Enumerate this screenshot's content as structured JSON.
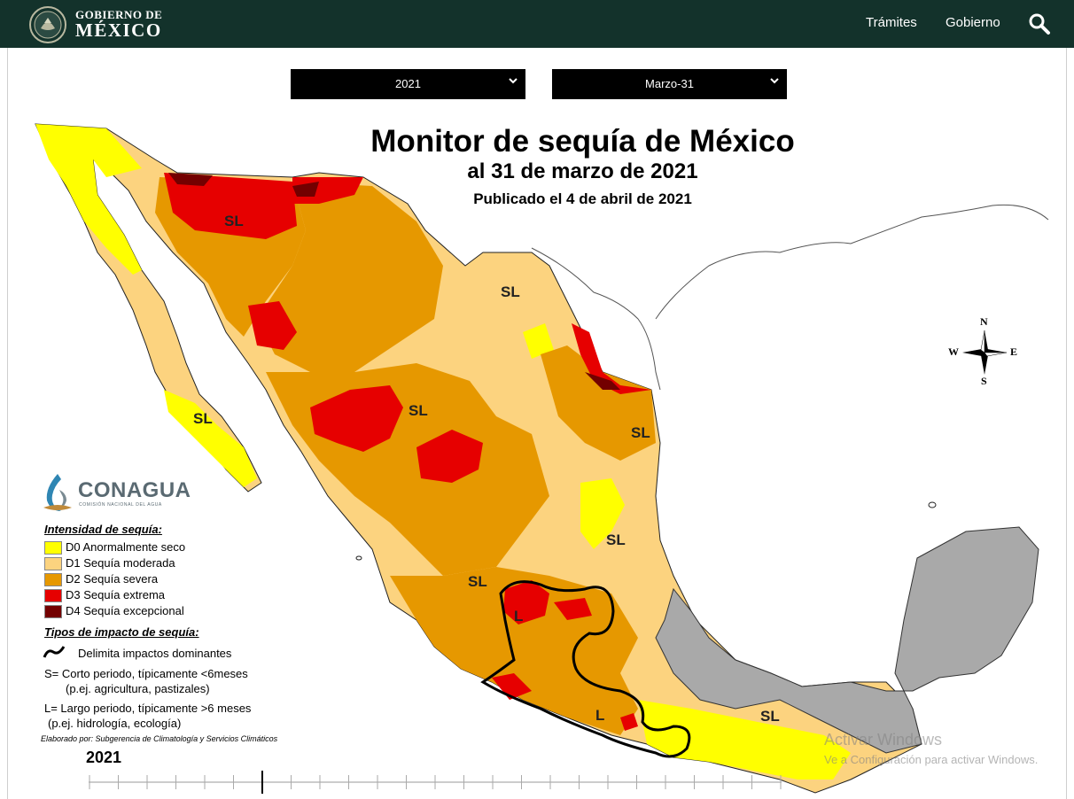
{
  "header": {
    "brand_line1": "GOBIERNO DE",
    "brand_line2": "MÉXICO",
    "nav": [
      "Trámites",
      "Gobierno"
    ],
    "search_icon": "search-icon"
  },
  "filters": {
    "year": "2021",
    "date": "Marzo-31"
  },
  "map": {
    "title": "Monitor de sequía de México",
    "subtitle": "al 31 de marzo de 2021",
    "published": "Publicado el 4 de abril de 2021",
    "region_labels": [
      "SL",
      "SL",
      "SL",
      "SL",
      "SL",
      "SL",
      "SL",
      "SL",
      "L",
      "L"
    ],
    "compass": {
      "n": "N",
      "s": "S",
      "e": "E",
      "w": "W"
    },
    "colors": {
      "D0": "#ffff00",
      "D1": "#fcd37f",
      "D2": "#e69800",
      "D3": "#e60000",
      "D4": "#730000",
      "no_drought": "#b0b0b0"
    }
  },
  "logo": {
    "name": "CONAGUA",
    "tagline": "COMISIÓN NACIONAL DEL AGUA"
  },
  "legend": {
    "intensity_heading": "Intensidad de sequía:",
    "categories": [
      {
        "code": "D0",
        "label": "D0 Anormalmente seco",
        "color": "#ffff00"
      },
      {
        "code": "D1",
        "label": "D1 Sequía moderada",
        "color": "#fcd37f"
      },
      {
        "code": "D2",
        "label": "D2 Sequía severa",
        "color": "#e69800"
      },
      {
        "code": "D3",
        "label": "D3 Sequía extrema",
        "color": "#e60000"
      },
      {
        "code": "D4",
        "label": "D4 Sequía excepcional",
        "color": "#730000"
      }
    ],
    "impact_heading": "Tipos de impacto de sequía:",
    "impact_line": "Delimita impactos dominantes",
    "short_term": "S= Corto periodo, típicamente <6meses",
    "short_term_example": "(p.ej. agricultura, pastizales)",
    "long_term": "L= Largo periodo, típicamente >6 meses",
    "long_term_example": "(p.ej. hidrología, ecología)",
    "credit": "Elaborado por: Subgerencia de Climatología y Servicios Climáticos"
  },
  "timeline": {
    "year": "2021",
    "ticks": 24,
    "current_tick": 6
  },
  "watermark": {
    "line1": "Activar Windows",
    "line2": "Ve a Configuración para activar Windows."
  }
}
